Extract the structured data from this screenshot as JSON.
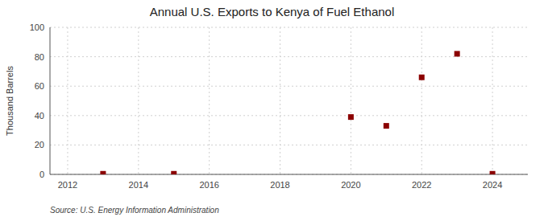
{
  "chart_data": {
    "type": "scatter",
    "title": "Annual U.S. Exports to Kenya of Fuel Ethanol",
    "ylabel": "Thousand Barrels",
    "source": "Source: U.S. Energy Information Administration",
    "x": [
      2013,
      2015,
      2020,
      2021,
      2022,
      2023,
      2024
    ],
    "values": [
      0.4,
      0.4,
      39,
      33,
      66,
      82,
      0.4
    ],
    "color": "#8b0000",
    "marker": "square",
    "xlim": [
      2011.5,
      2025.0
    ],
    "ylim": [
      0,
      100
    ],
    "xticks": [
      2012,
      2014,
      2016,
      2018,
      2020,
      2022,
      2024
    ],
    "yticks": [
      0,
      20,
      40,
      60,
      80,
      100
    ],
    "grid": true
  }
}
